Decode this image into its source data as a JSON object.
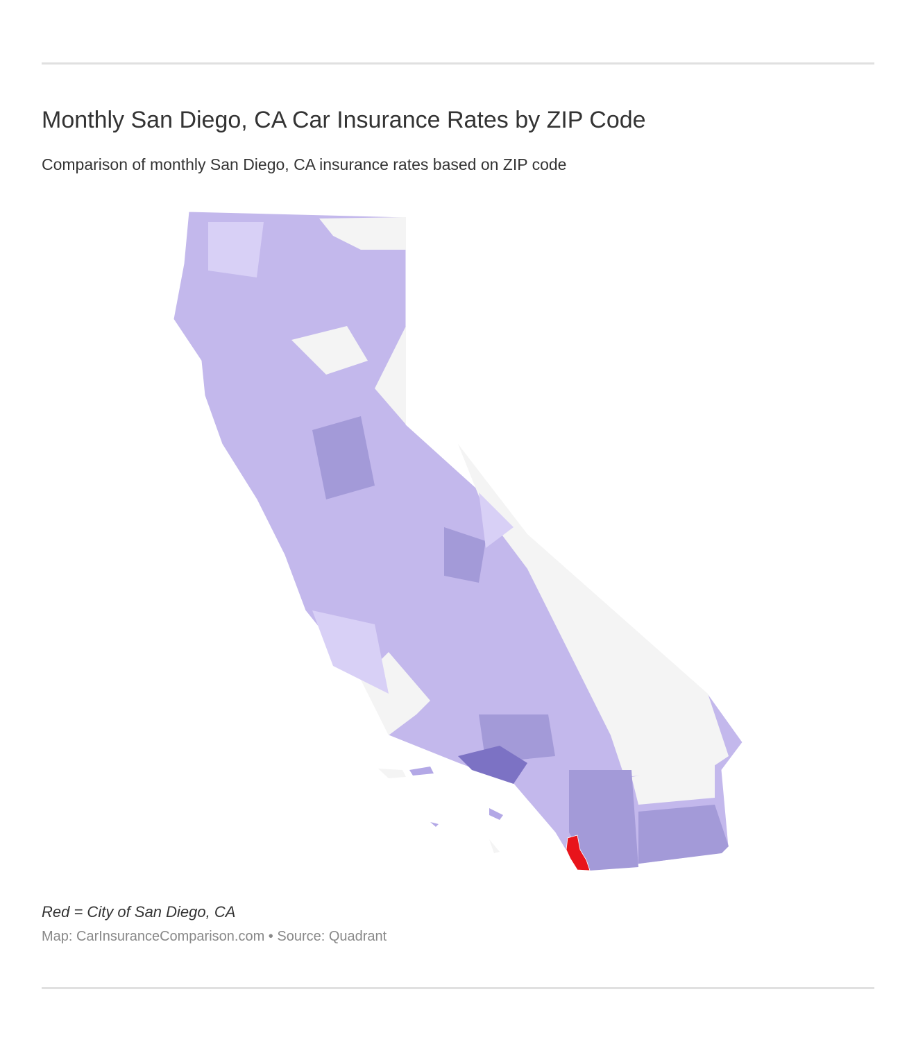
{
  "header": {
    "title": "Monthly San Diego, CA Car Insurance Rates by ZIP Code",
    "subtitle": "Comparison of monthly San Diego, CA insurance rates based on ZIP code"
  },
  "map": {
    "note": "Red = City of San Diego, CA",
    "source": "Map: CarInsuranceComparison.com • Source: Quadrant"
  }
}
